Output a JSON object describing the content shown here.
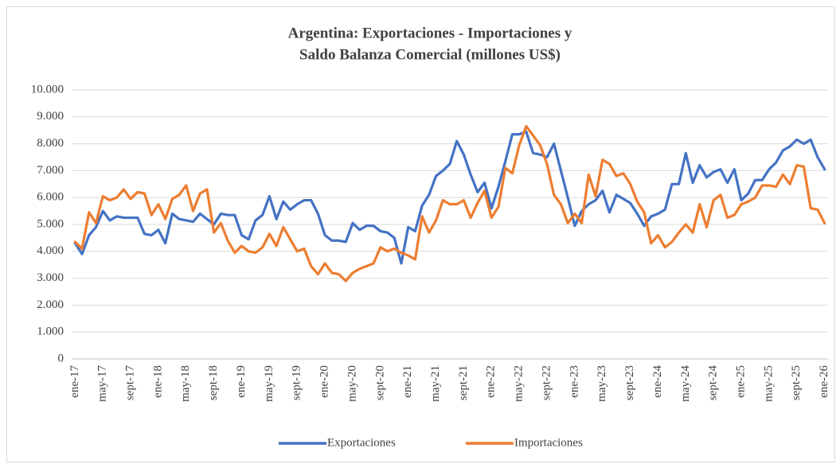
{
  "chart_data": {
    "type": "line",
    "title": [
      "Argentina: Exportaciones - Importaciones y",
      "Saldo Balanza Comercial (millones US$)"
    ],
    "categories": [
      "ene-17",
      null,
      null,
      null,
      "may-17",
      null,
      null,
      null,
      "sept-17",
      null,
      null,
      null,
      "ene-18",
      null,
      null,
      null,
      "may-18",
      null,
      null,
      null,
      "sept-18",
      null,
      null,
      null,
      "ene-19",
      null,
      null,
      null,
      "may-19",
      null,
      null,
      null,
      "sept-19",
      null,
      null,
      null,
      "ene-20",
      null,
      null,
      null,
      "may-20",
      null,
      null,
      null,
      "sept-20",
      null,
      null,
      null,
      "ene-21",
      null,
      null,
      null,
      "may-21",
      null,
      null,
      null,
      "sept-21",
      null,
      null,
      null,
      "ene-22",
      null,
      null,
      null,
      "may-22",
      null,
      null,
      null,
      "sept-22",
      null,
      null,
      null,
      "ene-23",
      null,
      null,
      null,
      "may-23",
      null,
      null,
      null,
      "sept-23",
      null,
      null,
      null,
      "ene-24",
      null,
      null,
      null,
      "may-24",
      null,
      null,
      null,
      "sept-24",
      null,
      null,
      null,
      "ene-25",
      null,
      null,
      null,
      "may-25",
      null,
      null,
      null,
      "sept-25",
      null,
      null,
      null,
      "ene-26"
    ],
    "series": [
      {
        "name": "Exportaciones",
        "color": "#4472c4",
        "values": [
          4300,
          3900,
          4600,
          4900,
          5500,
          5150,
          5300,
          5250,
          5250,
          5250,
          4650,
          4600,
          4800,
          4300,
          5400,
          5200,
          5150,
          5100,
          5400,
          5200,
          5000,
          5400,
          5350,
          5350,
          4600,
          4450,
          5150,
          5350,
          6050,
          5200,
          5850,
          5550,
          5750,
          5900,
          5900,
          5400,
          4600,
          4400,
          4400,
          4350,
          5050,
          4800,
          4950,
          4950,
          4750,
          4700,
          4500,
          3550,
          4900,
          4750,
          5700,
          6100,
          6800,
          7000,
          7250,
          8100,
          7600,
          6850,
          6200,
          6550,
          5600,
          6400,
          7350,
          8350,
          8350,
          8450,
          7650,
          7600,
          7500,
          8000,
          7000,
          6000,
          4950,
          5500,
          5750,
          5900,
          6250,
          5450,
          6100,
          5950,
          5800,
          5400,
          4950,
          5300,
          5400,
          5550,
          6500,
          6500,
          7650,
          6550,
          7200,
          6750,
          6950,
          7050,
          6550,
          7050,
          5900,
          6150,
          6650,
          6650,
          7050,
          7300,
          7750,
          7900,
          8150,
          8000,
          8150,
          7500,
          7050
        ]
      },
      {
        "name": "Importaciones",
        "color": "#ed7d31",
        "values": [
          4350,
          4100,
          5450,
          5050,
          6050,
          5900,
          6000,
          6300,
          5950,
          6200,
          6150,
          5350,
          5750,
          5200,
          5950,
          6100,
          6450,
          5500,
          6150,
          6300,
          4700,
          5050,
          4400,
          3950,
          4200,
          4000,
          3950,
          4150,
          4650,
          4200,
          4900,
          4450,
          4000,
          4100,
          3450,
          3150,
          3550,
          3200,
          3150,
          2900,
          3200,
          3350,
          3450,
          3550,
          4150,
          4000,
          4100,
          3950,
          3850,
          3700,
          5300,
          4700,
          5150,
          5900,
          5750,
          5750,
          5900,
          5250,
          5800,
          6250,
          5250,
          5650,
          7100,
          6900,
          7950,
          8650,
          8300,
          7950,
          7250,
          6100,
          5750,
          5050,
          5400,
          5050,
          6850,
          6050,
          7400,
          7250,
          6800,
          6900,
          6500,
          5850,
          5450,
          4300,
          4600,
          4150,
          4350,
          4700,
          5000,
          4700,
          5750,
          4900,
          5900,
          6100,
          5250,
          5350,
          5750,
          5850,
          6000,
          6450,
          6450,
          6400,
          6850,
          6500,
          7200,
          7150,
          5600,
          5550,
          5050
        ]
      }
    ],
    "ylim": [
      0,
      10000
    ],
    "yticks": [
      0,
      {
        "value": 1000,
        "label": "1.000"
      },
      {
        "value": 2000,
        "label": "2.000"
      },
      {
        "value": 3000,
        "label": "3.000"
      },
      {
        "value": 4000,
        "label": "4.000"
      },
      {
        "value": 5000,
        "label": "5.000"
      },
      {
        "value": 6000,
        "label": "6.000"
      },
      {
        "value": 7000,
        "label": "7.000"
      },
      {
        "value": 8000,
        "label": "8.000"
      },
      {
        "value": 9000,
        "label": "9.000"
      },
      {
        "value": 10000,
        "label": "10.000"
      }
    ],
    "grid": true,
    "legend": "bottom"
  }
}
